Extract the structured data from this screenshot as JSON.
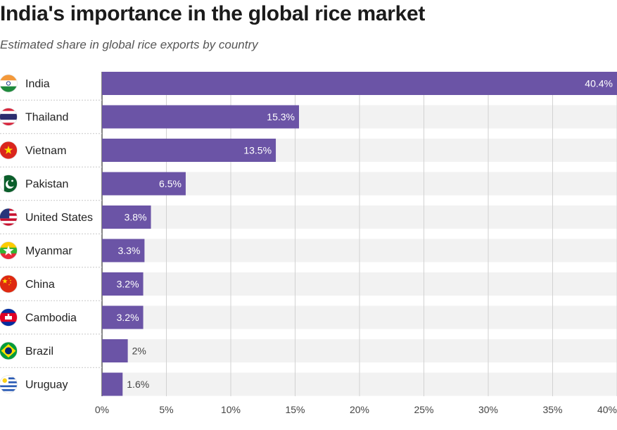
{
  "title": "India's importance in the global rice market",
  "subtitle": "Estimated share in global rice exports by country",
  "colors": {
    "bar": "#6b54a6",
    "track": "#f2f2f2",
    "grid": "#d2d2d2",
    "value_inside": "#ffffff",
    "value_outside": "#444444"
  },
  "chart_data": {
    "type": "bar",
    "orientation": "horizontal",
    "title": "India's importance in the global rice market",
    "subtitle": "Estimated share in global rice exports by country",
    "categories": [
      "India",
      "Thailand",
      "Vietnam",
      "Pakistan",
      "United States",
      "Myanmar",
      "China",
      "Cambodia",
      "Brazil",
      "Uruguay"
    ],
    "values": [
      40.4,
      15.3,
      13.5,
      6.5,
      3.8,
      3.3,
      3.2,
      3.2,
      2,
      1.6
    ],
    "value_labels": [
      "40.4%",
      "15.3%",
      "13.5%",
      "6.5%",
      "3.8%",
      "3.3%",
      "3.2%",
      "3.2%",
      "2%",
      "1.6%"
    ],
    "flag_icons": [
      "india-flag-icon",
      "thailand-flag-icon",
      "vietnam-flag-icon",
      "pakistan-flag-icon",
      "united-states-flag-icon",
      "myanmar-flag-icon",
      "china-flag-icon",
      "cambodia-flag-icon",
      "brazil-flag-icon",
      "uruguay-flag-icon"
    ],
    "xlim": [
      0,
      40
    ],
    "xticks": [
      0,
      5,
      10,
      15,
      20,
      25,
      30,
      35,
      40
    ],
    "xtick_labels": [
      "0%",
      "5%",
      "10%",
      "15%",
      "20%",
      "25%",
      "30%",
      "35%",
      "40%"
    ],
    "grid": true,
    "legend": "none"
  }
}
